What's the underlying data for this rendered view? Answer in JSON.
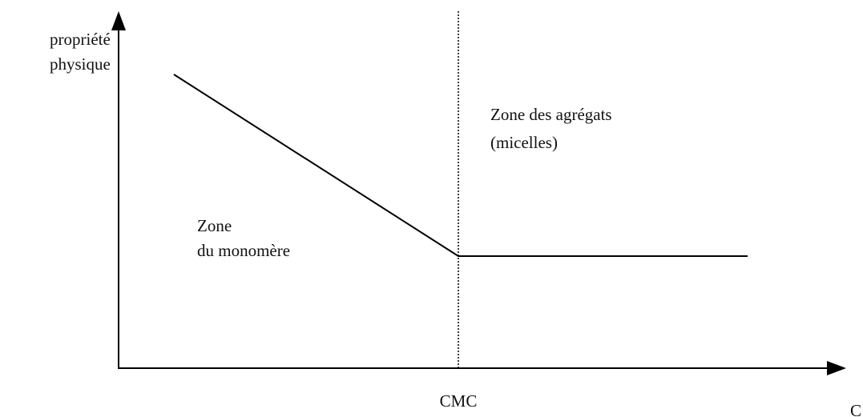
{
  "y_axis_label": [
    "propriété",
    "physique"
  ],
  "x_axis_label": "C",
  "cmc_label": "CMC",
  "zones": [
    {
      "lines": [
        "Zone",
        "du monomère"
      ]
    },
    {
      "lines": [
        "Zone des agrégats",
        "(micelles)"
      ]
    }
  ]
}
